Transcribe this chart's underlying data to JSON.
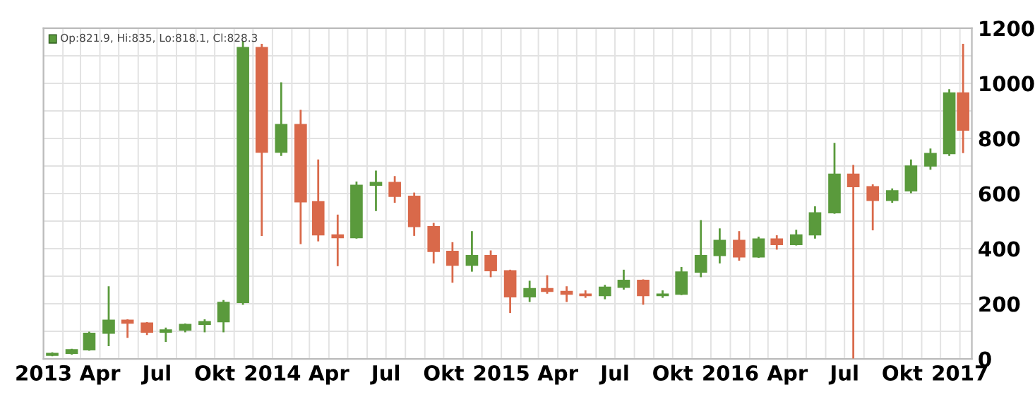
{
  "chart_data": {
    "type": "candlestick",
    "x": [
      "2013-01-15",
      "2013-02-15",
      "2013-03-15",
      "2013-04-15",
      "2013-05-15",
      "2013-06-15",
      "2013-07-15",
      "2013-08-15",
      "2013-09-15",
      "2013-10-15",
      "2013-11-15",
      "2013-12-15",
      "2014-01-15",
      "2014-02-15",
      "2014-03-15",
      "2014-04-15",
      "2014-05-15",
      "2014-06-15",
      "2014-07-15",
      "2014-08-15",
      "2014-09-15",
      "2014-10-15",
      "2014-11-15",
      "2014-12-15",
      "2015-01-15",
      "2015-02-15",
      "2015-03-15",
      "2015-04-15",
      "2015-05-15",
      "2015-06-15",
      "2015-07-15",
      "2015-08-15",
      "2015-09-15",
      "2015-10-15",
      "2015-11-15",
      "2015-12-15",
      "2016-01-15",
      "2016-02-15",
      "2016-03-15",
      "2016-04-15",
      "2016-05-15",
      "2016-06-15",
      "2016-07-15",
      "2016-08-15",
      "2016-09-15",
      "2016-10-15",
      "2016-11-15",
      "2016-12-15",
      "2017-01-06"
    ],
    "ohlc": [
      [
        13,
        20,
        13,
        20
      ],
      [
        20,
        33,
        19,
        33
      ],
      [
        33,
        95,
        33,
        93
      ],
      [
        93,
        260,
        50,
        140
      ],
      [
        140,
        140,
        80,
        130
      ],
      [
        130,
        130,
        90,
        97
      ],
      [
        97,
        110,
        65,
        105
      ],
      [
        105,
        125,
        100,
        125
      ],
      [
        125,
        140,
        100,
        135
      ],
      [
        135,
        210,
        100,
        205
      ],
      [
        205,
        1150,
        200,
        1130
      ],
      [
        1130,
        1140,
        450,
        750
      ],
      [
        750,
        1000,
        740,
        850
      ],
      [
        850,
        900,
        420,
        570
      ],
      [
        570,
        720,
        430,
        450
      ],
      [
        450,
        520,
        340,
        440
      ],
      [
        440,
        640,
        440,
        630
      ],
      [
        630,
        680,
        540,
        640
      ],
      [
        640,
        660,
        570,
        590
      ],
      [
        590,
        600,
        450,
        480
      ],
      [
        480,
        490,
        350,
        390
      ],
      [
        390,
        420,
        280,
        340
      ],
      [
        340,
        460,
        320,
        375
      ],
      [
        375,
        390,
        300,
        320
      ],
      [
        320,
        320,
        170,
        225
      ],
      [
        225,
        280,
        210,
        255
      ],
      [
        255,
        300,
        240,
        245
      ],
      [
        245,
        260,
        210,
        235
      ],
      [
        235,
        245,
        225,
        230
      ],
      [
        230,
        265,
        220,
        260
      ],
      [
        260,
        320,
        255,
        285
      ],
      [
        285,
        285,
        200,
        230
      ],
      [
        230,
        245,
        225,
        235
      ],
      [
        235,
        330,
        235,
        315
      ],
      [
        315,
        500,
        300,
        375
      ],
      [
        375,
        470,
        350,
        430
      ],
      [
        430,
        460,
        360,
        370
      ],
      [
        370,
        440,
        370,
        435
      ],
      [
        435,
        445,
        400,
        415
      ],
      [
        415,
        465,
        415,
        450
      ],
      [
        450,
        550,
        440,
        530
      ],
      [
        530,
        780,
        530,
        670
      ],
      [
        670,
        700,
        5,
        625
      ],
      [
        625,
        630,
        470,
        575
      ],
      [
        575,
        615,
        570,
        610
      ],
      [
        610,
        720,
        605,
        700
      ],
      [
        700,
        760,
        690,
        745
      ],
      [
        745,
        975,
        740,
        965
      ],
      [
        965,
        1140,
        750,
        830
      ]
    ],
    "colors": [
      "#5a9a3c",
      "#5a9a3c",
      "#5a9a3c",
      "#5a9a3c",
      "#d9694a",
      "#d9694a",
      "#5a9a3c",
      "#5a9a3c",
      "#5a9a3c",
      "#5a9a3c",
      "#5a9a3c",
      "#d9694a",
      "#5a9a3c",
      "#d9694a",
      "#d9694a",
      "#d9694a",
      "#5a9a3c",
      "#5a9a3c",
      "#d9694a",
      "#d9694a",
      "#d9694a",
      "#d9694a",
      "#5a9a3c",
      "#d9694a",
      "#d9694a",
      "#5a9a3c",
      "#d9694a",
      "#d9694a",
      "#d9694a",
      "#5a9a3c",
      "#5a9a3c",
      "#d9694a",
      "#5a9a3c",
      "#5a9a3c",
      "#5a9a3c",
      "#5a9a3c",
      "#d9694a",
      "#5a9a3c",
      "#d9694a",
      "#5a9a3c",
      "#5a9a3c",
      "#5a9a3c",
      "#d9694a",
      "#d9694a",
      "#5a9a3c",
      "#5a9a3c",
      "#5a9a3c",
      "#5a9a3c",
      "#d9694a"
    ],
    "xlim": [
      "2013-01-01",
      "2017-01-20"
    ],
    "xticks": [
      {
        "value": "2013-01-01",
        "label": "2013"
      },
      {
        "value": "2013-02-01",
        "label": null
      },
      {
        "value": "2013-03-01",
        "label": null
      },
      {
        "value": "2013-04-01",
        "label": "Apr"
      },
      {
        "value": "2013-05-01",
        "label": null
      },
      {
        "value": "2013-06-01",
        "label": null
      },
      {
        "value": "2013-07-01",
        "label": "Jul"
      },
      {
        "value": "2013-08-01",
        "label": null
      },
      {
        "value": "2013-09-01",
        "label": null
      },
      {
        "value": "2013-10-01",
        "label": "Okt"
      },
      {
        "value": "2013-11-01",
        "label": null
      },
      {
        "value": "2013-12-01",
        "label": null
      },
      {
        "value": "2014-01-01",
        "label": "2014"
      },
      {
        "value": "2014-02-01",
        "label": null
      },
      {
        "value": "2014-03-01",
        "label": null
      },
      {
        "value": "2014-04-01",
        "label": "Apr"
      },
      {
        "value": "2014-05-01",
        "label": null
      },
      {
        "value": "2014-06-01",
        "label": null
      },
      {
        "value": "2014-07-01",
        "label": "Jul"
      },
      {
        "value": "2014-08-01",
        "label": null
      },
      {
        "value": "2014-09-01",
        "label": null
      },
      {
        "value": "2014-10-01",
        "label": "Okt"
      },
      {
        "value": "2014-11-01",
        "label": null
      },
      {
        "value": "2014-12-01",
        "label": null
      },
      {
        "value": "2015-01-01",
        "label": "2015"
      },
      {
        "value": "2015-02-01",
        "label": null
      },
      {
        "value": "2015-03-01",
        "label": null
      },
      {
        "value": "2015-04-01",
        "label": "Apr"
      },
      {
        "value": "2015-05-01",
        "label": null
      },
      {
        "value": "2015-06-01",
        "label": null
      },
      {
        "value": "2015-07-01",
        "label": "Jul"
      },
      {
        "value": "2015-08-01",
        "label": null
      },
      {
        "value": "2015-09-01",
        "label": null
      },
      {
        "value": "2015-10-01",
        "label": "Okt"
      },
      {
        "value": "2015-11-01",
        "label": null
      },
      {
        "value": "2015-12-01",
        "label": null
      },
      {
        "value": "2016-01-01",
        "label": "2016"
      },
      {
        "value": "2016-02-01",
        "label": null
      },
      {
        "value": "2016-03-01",
        "label": null
      },
      {
        "value": "2016-04-01",
        "label": "Apr"
      },
      {
        "value": "2016-05-01",
        "label": null
      },
      {
        "value": "2016-06-01",
        "label": null
      },
      {
        "value": "2016-07-01",
        "label": "Jul"
      },
      {
        "value": "2016-08-01",
        "label": null
      },
      {
        "value": "2016-09-01",
        "label": null
      },
      {
        "value": "2016-10-01",
        "label": "Okt"
      },
      {
        "value": "2016-11-01",
        "label": null
      },
      {
        "value": "2016-12-01",
        "label": null
      },
      {
        "value": "2017-01-01",
        "label": "2017"
      }
    ],
    "ylim": [
      0,
      1200
    ],
    "yticks": [
      0,
      {
        "value": 100,
        "label": null
      },
      200,
      {
        "value": 300,
        "label": null
      },
      400,
      {
        "value": 500,
        "label": null
      },
      600,
      {
        "value": 700,
        "label": null
      },
      800,
      {
        "value": 900,
        "label": null
      },
      1000,
      {
        "value": 1100,
        "label": null
      },
      1200
    ],
    "grid": true,
    "annotations": [
      "Op:821.9, Hi:835, Lo:818.1, Cl:828.3"
    ]
  }
}
